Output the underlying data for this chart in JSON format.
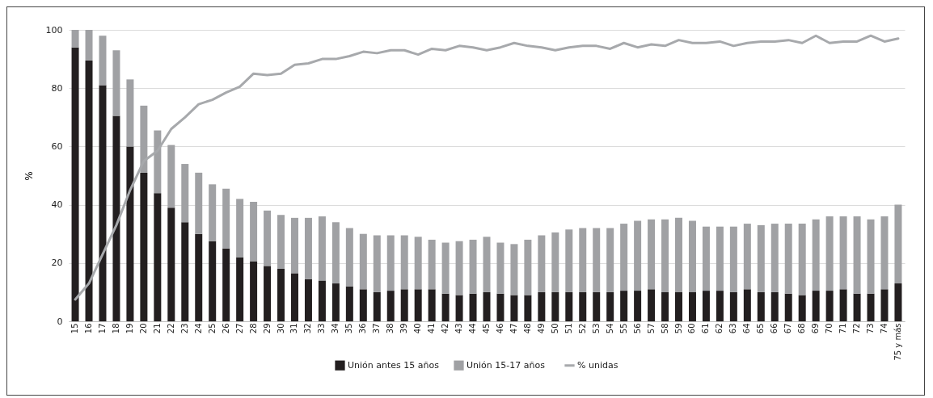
{
  "chart_data": {
    "type": "bar",
    "stacked": true,
    "ylabel": "%",
    "categories": [
      "15",
      "16",
      "17",
      "18",
      "19",
      "20",
      "21",
      "22",
      "23",
      "24",
      "25",
      "26",
      "27",
      "28",
      "29",
      "30",
      "31",
      "32",
      "33",
      "34",
      "35",
      "36",
      "37",
      "38",
      "39",
      "40",
      "41",
      "42",
      "43",
      "44",
      "45",
      "46",
      "47",
      "48",
      "49",
      "50",
      "51",
      "52",
      "53",
      "54",
      "55",
      "56",
      "57",
      "58",
      "59",
      "60",
      "61",
      "62",
      "63",
      "64",
      "65",
      "66",
      "67",
      "68",
      "69",
      "70",
      "71",
      "72",
      "73",
      "74",
      "75 y más"
    ],
    "series": [
      {
        "name": "Unión antes 15 años",
        "color": "#231f20",
        "values": [
          94,
          89.5,
          81,
          70.5,
          60,
          51,
          44,
          39,
          34,
          30,
          27.5,
          25,
          22,
          20.5,
          19,
          18,
          16.5,
          14.5,
          14,
          13,
          12,
          11,
          10,
          10.5,
          11,
          11,
          11,
          9.5,
          9,
          9.5,
          10,
          9.5,
          9,
          9,
          10,
          10,
          10,
          10,
          10,
          10,
          10.5,
          10.5,
          11,
          10,
          10,
          10,
          10.5,
          10.5,
          10,
          11,
          10,
          10,
          9.5,
          9,
          10.5,
          10.5,
          11,
          9.5,
          9.5,
          11,
          13
        ]
      },
      {
        "name": "Unión 15-17 años",
        "color": "#a0a1a4",
        "values": [
          6,
          10.5,
          17,
          22.5,
          23,
          23,
          21.5,
          21.5,
          20,
          21,
          19.5,
          20.5,
          20,
          20.5,
          19,
          18.5,
          19,
          21,
          22,
          21,
          20,
          19,
          19.5,
          19,
          18.5,
          18,
          17,
          17.5,
          18.5,
          18.5,
          19,
          17.5,
          17.5,
          19,
          19.5,
          20.5,
          21.5,
          22,
          22,
          22,
          23,
          24,
          24,
          25,
          25.5,
          24.5,
          22,
          22,
          22.5,
          22.5,
          23,
          23.5,
          24,
          24.5,
          24.5,
          25.5,
          25,
          26.5,
          25.5,
          25,
          27
        ]
      },
      {
        "name": "% unidas",
        "type": "line",
        "color": "#a7a9ac",
        "values": [
          7.5,
          13,
          23,
          33,
          45,
          55,
          58.5,
          66,
          70,
          74.5,
          76,
          78.5,
          80.5,
          85,
          84.5,
          85,
          88,
          88.5,
          90,
          90,
          91,
          92.5,
          92,
          93,
          93,
          91.5,
          93.5,
          93,
          94.5,
          94,
          93,
          94,
          95.5,
          94.5,
          94,
          93,
          94,
          94.5,
          94.5,
          93.5,
          95.5,
          94,
          95,
          94.5,
          96.5,
          95.5,
          95.5,
          96,
          94.5,
          95.5,
          96,
          96,
          96.5,
          95.5,
          98,
          95.5,
          96,
          96,
          98,
          96,
          97
        ]
      }
    ],
    "ylim": [
      0,
      100
    ],
    "yticks": [
      0,
      20,
      40,
      60,
      80,
      100
    ],
    "grid": "y",
    "legend": "bottom"
  }
}
